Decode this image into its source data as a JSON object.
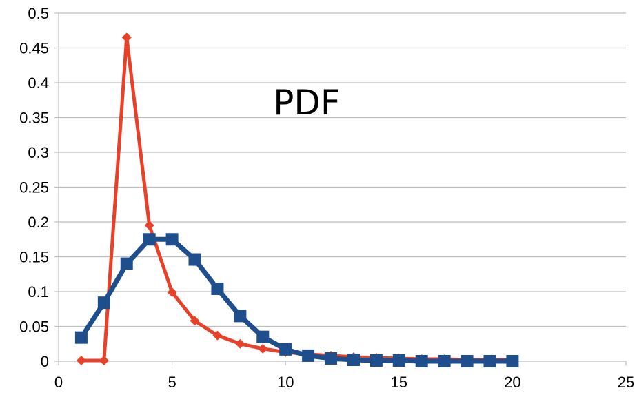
{
  "chart_data": {
    "type": "line",
    "title": "PDF",
    "xlabel": "",
    "ylabel": "",
    "xlim": [
      0,
      25
    ],
    "ylim": [
      0,
      0.5
    ],
    "xticks": [
      "0",
      "5",
      "10",
      "15",
      "20",
      "25"
    ],
    "yticks": [
      "0",
      "0.05",
      "0.1",
      "0.15",
      "0.2",
      "0.25",
      "0.3",
      "0.35",
      "0.4",
      "0.45",
      "0.5"
    ],
    "grid": "horizontal",
    "legend": "none",
    "series": [
      {
        "color": "#e8412a",
        "marker": "diamond",
        "x": [
          1,
          2,
          3,
          4,
          5,
          6,
          7,
          8,
          9,
          10,
          11,
          12,
          13,
          14,
          15,
          16,
          17,
          18,
          19,
          20
        ],
        "y": [
          0.001,
          0.001,
          0.465,
          0.195,
          0.099,
          0.058,
          0.037,
          0.025,
          0.018,
          0.013,
          0.01,
          0.008,
          0.006,
          0.005,
          0.004,
          0.003,
          0.003,
          0.002,
          0.002,
          0.002
        ]
      },
      {
        "color": "#1e4e8c",
        "marker": "square",
        "x": [
          1,
          2,
          3,
          4,
          5,
          6,
          7,
          8,
          9,
          10,
          11,
          12,
          13,
          14,
          15,
          16,
          17,
          18,
          19,
          20
        ],
        "y": [
          0.034,
          0.084,
          0.14,
          0.175,
          0.175,
          0.146,
          0.104,
          0.065,
          0.035,
          0.017,
          0.008,
          0.004,
          0.002,
          0.001,
          0.001,
          0.0,
          0.0,
          0.0,
          0.0,
          0.0
        ]
      }
    ]
  }
}
